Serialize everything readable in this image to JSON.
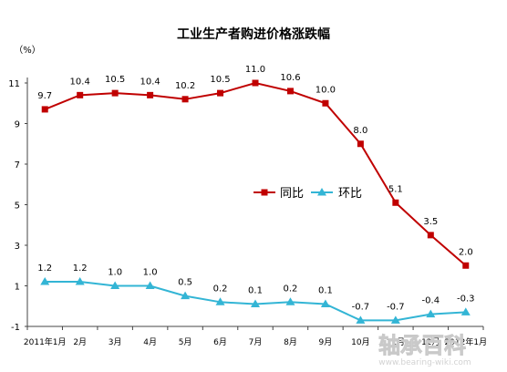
{
  "chart_data": {
    "type": "line",
    "title": "工业生产者购进价格涨跌幅",
    "ylabel": "（%）",
    "ylim": [
      -1,
      11
    ],
    "yticks": [
      -1,
      1,
      3,
      5,
      7,
      9,
      11
    ],
    "categories": [
      "2011年1月",
      "2月",
      "3月",
      "4月",
      "5月",
      "6月",
      "7月",
      "8月",
      "9月",
      "10月",
      "11月",
      "12月",
      "2012年1月"
    ],
    "grid": false,
    "legend_position": "center",
    "series": [
      {
        "name": "同比",
        "color": "#c00000",
        "marker": "square",
        "values": [
          9.7,
          10.4,
          10.5,
          10.4,
          10.2,
          10.5,
          11.0,
          10.6,
          10.0,
          8.0,
          5.1,
          3.5,
          2.0
        ],
        "labels": [
          "9.7",
          "10.4",
          "10.5",
          "10.4",
          "10.2",
          "10.5",
          "11.0",
          "10.6",
          "10.0",
          "8.0",
          "5.1",
          "3.5",
          "2.0"
        ]
      },
      {
        "name": "环比",
        "color": "#33b5d5",
        "marker": "triangle",
        "values": [
          1.2,
          1.2,
          1.0,
          1.0,
          0.5,
          0.2,
          0.1,
          0.2,
          0.1,
          -0.7,
          -0.7,
          -0.4,
          -0.3
        ],
        "labels": [
          "1.2",
          "1.2",
          "1.0",
          "1.0",
          "0.5",
          "0.2",
          "0.1",
          "0.2",
          "0.1",
          "-0.7",
          "-0.7",
          "-0.4",
          "-0.3"
        ]
      }
    ]
  },
  "watermark": {
    "logo_text": "轴承百科",
    "url_text": "www.bearing-wiki.com"
  }
}
